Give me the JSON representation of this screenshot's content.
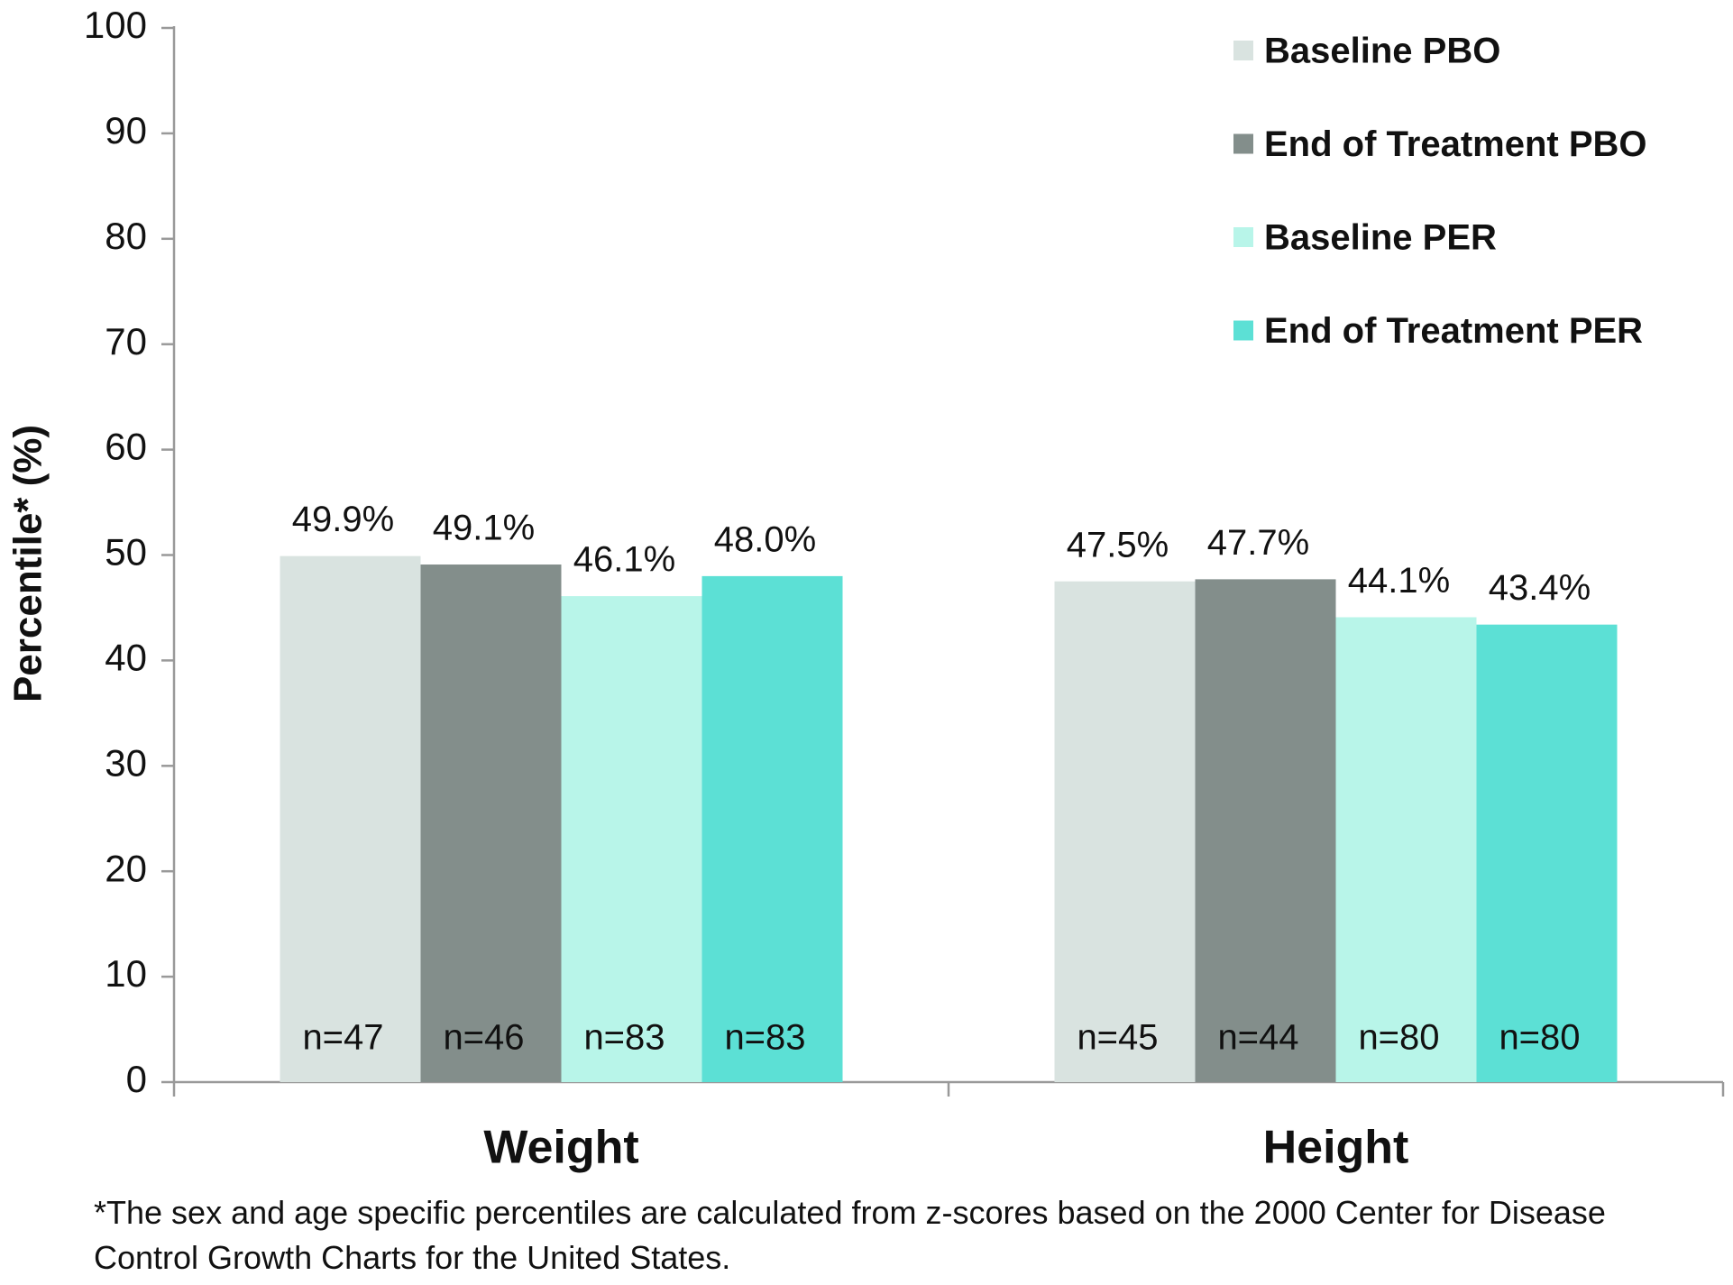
{
  "chart_data": {
    "type": "bar",
    "y_label": "Percentile* (%)",
    "categories": [
      "Weight",
      "Height"
    ],
    "series": [
      {
        "name": "Baseline PBO",
        "color": "#d9e3e0",
        "values": [
          49.9,
          47.5
        ],
        "value_labels": [
          "49.9%",
          "47.5%"
        ],
        "n_labels": [
          "n=47",
          "n=45"
        ]
      },
      {
        "name": "End of Treatment PBO",
        "color": "#838e8b",
        "values": [
          49.1,
          47.7
        ],
        "value_labels": [
          "49.1%",
          "47.7%"
        ],
        "n_labels": [
          "n=46",
          "n=44"
        ]
      },
      {
        "name": "Baseline PER",
        "color": "#b8f5e9",
        "values": [
          46.1,
          44.1
        ],
        "value_labels": [
          "46.1%",
          "44.1%"
        ],
        "n_labels": [
          "n=83",
          "n=80"
        ]
      },
      {
        "name": "End of Treatment PER",
        "color": "#5ce0d5",
        "values": [
          48.0,
          43.4
        ],
        "value_labels": [
          "48.0%",
          "43.4%"
        ],
        "n_labels": [
          "n=83",
          "n=80"
        ]
      }
    ],
    "ylim": [
      0,
      100
    ],
    "yticks": [
      0,
      10,
      20,
      30,
      40,
      50,
      60,
      70,
      80,
      90,
      100
    ],
    "grid": false,
    "legend": "top-right",
    "footnote": "*The sex and age specific percentiles are calculated from z-scores based on the 2000 Center for Disease Control Growth Charts for the United States."
  }
}
